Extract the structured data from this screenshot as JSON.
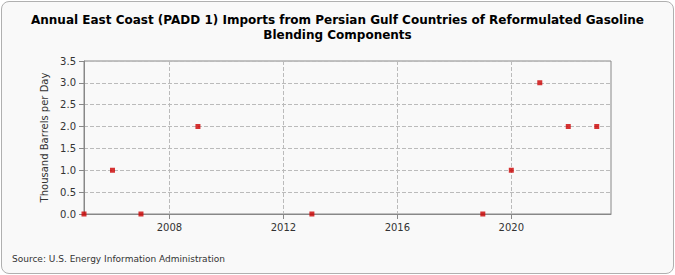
{
  "chart_data": {
    "type": "scatter",
    "title": "Annual East Coast (PADD 1) Imports from Persian Gulf Countries of Reformulated Gasoline\nBlending Components",
    "y_label": "Thousand Barrels per Day",
    "annotations": [
      "Source: U.S. Energy Information Administration"
    ],
    "x": [
      2005,
      2006,
      2007,
      2009,
      2013,
      2019,
      2020,
      2021,
      2022,
      2023
    ],
    "values": [
      0,
      1,
      0,
      2,
      0,
      0,
      1,
      3,
      2,
      2
    ],
    "color": "#cc0000",
    "marker": "square",
    "xlim": [
      2005,
      2023.5
    ],
    "xticks": [
      2008,
      2012,
      2016,
      2020
    ],
    "ylim": [
      0,
      3.5
    ],
    "yticks": [
      {
        "value": 0,
        "label": "0.0"
      },
      0.5,
      {
        "value": 1,
        "label": "1.0"
      },
      1.5,
      {
        "value": 2,
        "label": "2.0"
      },
      2.5,
      {
        "value": 3,
        "label": "3.0"
      },
      3.5
    ],
    "grid": true
  }
}
